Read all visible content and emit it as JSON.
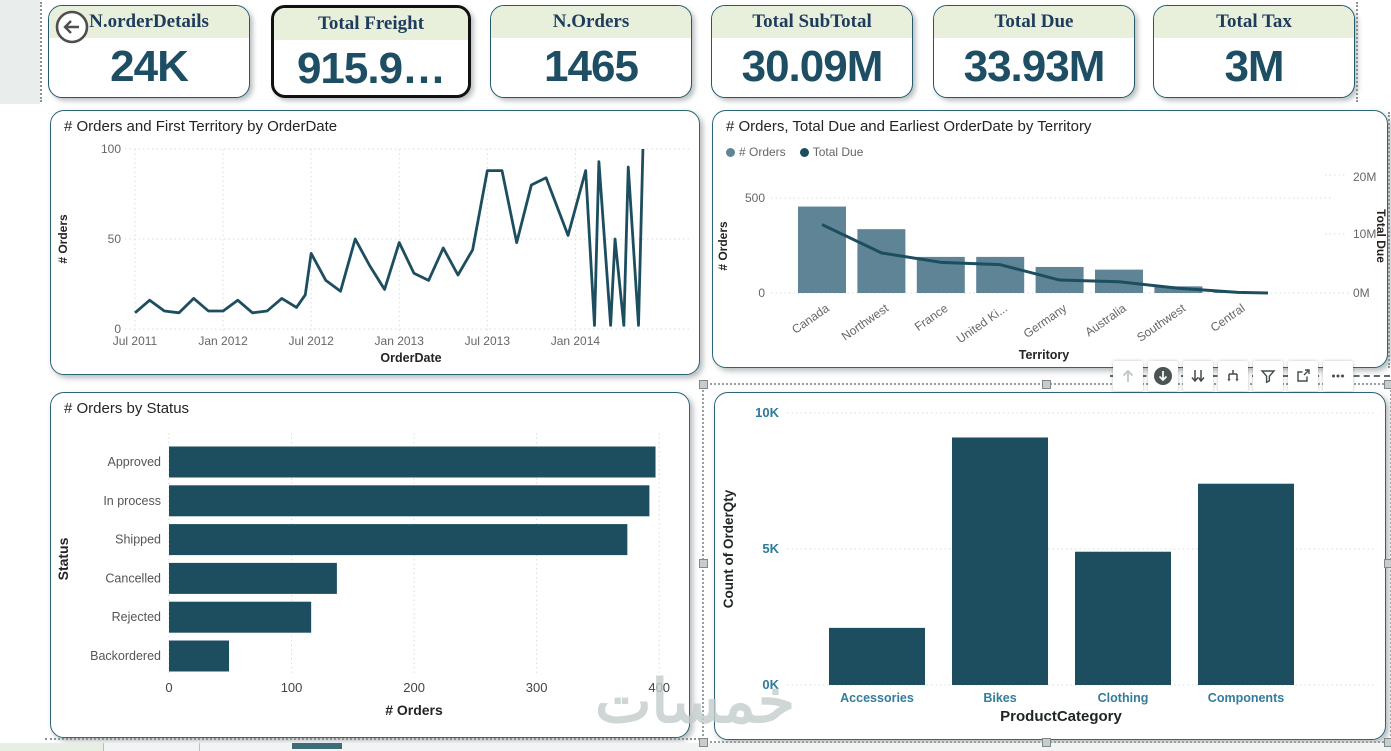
{
  "watermark": "خمسات",
  "colors": {
    "dark_teal": "#1c4e5f",
    "slate_blue": "#5f8496",
    "kpi_header_bg": "#e8f0dc",
    "kpi_title_text": "#1e3c5c",
    "kpi_value_text": "#1d4e63",
    "panel_border": "#2c6576",
    "axis_text": "#666666",
    "teal_tick_text": "#2d7b9a"
  },
  "kpi_cards": [
    {
      "title": "N.orderDetails",
      "value": "24K",
      "has_back_icon": true,
      "selected": false
    },
    {
      "title": "Total Freight",
      "value": "915.9…",
      "has_back_icon": false,
      "selected": true
    },
    {
      "title": "N.Orders",
      "value": "1465",
      "has_back_icon": false,
      "selected": false
    },
    {
      "title": "Total SubTotal",
      "value": "30.09M",
      "has_back_icon": false,
      "selected": false
    },
    {
      "title": "Total Due",
      "value": "33.93M",
      "has_back_icon": false,
      "selected": false
    },
    {
      "title": "Total Tax",
      "value": "3M",
      "has_back_icon": false,
      "selected": false
    }
  ],
  "toolbar": {
    "icons": [
      "drill-up",
      "drill-down",
      "go-to-next-level",
      "expand-all-down",
      "filter",
      "focus-mode",
      "more-options"
    ]
  },
  "chart_data": [
    {
      "id": "orders-by-orderdate",
      "type": "line",
      "title": "# Orders and First Territory by OrderDate",
      "xlabel": "OrderDate",
      "ylabel": "# Orders",
      "ylim": [
        0,
        100
      ],
      "y_ticks": [
        0,
        50,
        100
      ],
      "x_ticks": [
        "Jul 2011",
        "Jan 2012",
        "Jul 2012",
        "Jan 2013",
        "Jul 2013",
        "Jan 2014"
      ],
      "x_tick_months": [
        0,
        6,
        12,
        18,
        24,
        30
      ],
      "grid": "both-dotted",
      "points": [
        [
          0,
          9
        ],
        [
          1,
          16
        ],
        [
          2,
          10
        ],
        [
          3,
          9
        ],
        [
          4,
          17
        ],
        [
          5,
          10
        ],
        [
          6,
          10
        ],
        [
          7,
          16
        ],
        [
          8,
          9
        ],
        [
          9,
          10
        ],
        [
          10,
          17
        ],
        [
          11,
          12
        ],
        [
          11.6,
          19
        ],
        [
          12,
          42
        ],
        [
          13,
          27
        ],
        [
          14,
          21
        ],
        [
          15,
          50
        ],
        [
          16,
          35
        ],
        [
          17,
          22
        ],
        [
          18,
          48
        ],
        [
          19,
          31
        ],
        [
          20,
          27
        ],
        [
          21,
          45
        ],
        [
          22,
          30
        ],
        [
          23,
          44
        ],
        [
          24,
          88
        ],
        [
          25,
          88
        ],
        [
          26,
          48
        ],
        [
          27,
          80
        ],
        [
          28,
          84
        ],
        [
          29.5,
          52
        ],
        [
          30.7,
          88
        ],
        [
          31.3,
          2
        ],
        [
          31.6,
          93
        ],
        [
          32.4,
          2
        ],
        [
          32.7,
          50
        ],
        [
          33.3,
          2
        ],
        [
          33.6,
          90
        ],
        [
          34.3,
          2
        ],
        [
          34.6,
          100
        ]
      ]
    },
    {
      "id": "orders-due-by-territory",
      "type": "combo-bar-line",
      "title": "# Orders, Total Due and Earliest OrderDate by Territory",
      "xlabel": "Territory",
      "legend": [
        {
          "label": "# Orders",
          "color_key": "slate_blue"
        },
        {
          "label": "Total Due",
          "color_key": "dark_teal"
        }
      ],
      "categories": [
        "Canada",
        "Northwest",
        "France",
        "United Ki...",
        "Germany",
        "Australia",
        "Southwest",
        "Central"
      ],
      "series": [
        {
          "name": "# Orders",
          "type": "bar",
          "axis": "left",
          "values": [
            455,
            336,
            190,
            190,
            137,
            123,
            35,
            4
          ]
        },
        {
          "name": "Total Due",
          "type": "line",
          "axis": "right",
          "values_millions": [
            11.6,
            6.8,
            5.2,
            4.8,
            2.2,
            1.9,
            0.8,
            0.1
          ]
        }
      ],
      "left_axis": {
        "label": "# Orders",
        "ticks": [
          0,
          500
        ],
        "max": 500
      },
      "right_axis": {
        "label": "Total Due",
        "ticks": [
          "0M",
          "10M",
          "20M"
        ],
        "tick_values_m": [
          0,
          10,
          20
        ],
        "max_m": 20
      }
    },
    {
      "id": "orders-by-status",
      "type": "bar-horizontal",
      "title": "# Orders by Status",
      "xlabel": "# Orders",
      "ylabel": "Status",
      "categories": [
        "Approved",
        "In process",
        "Shipped",
        "Cancelled",
        "Rejected",
        "Backordered"
      ],
      "values": [
        397,
        392,
        374,
        137,
        116,
        49
      ],
      "x_ticks": [
        0,
        100,
        200,
        300,
        400
      ],
      "xlim": [
        0,
        420
      ],
      "grid": "vertical-dotted"
    },
    {
      "id": "orderqty-by-productcategory",
      "type": "bar",
      "title": "",
      "xlabel": "ProductCategory",
      "ylabel": "Count of OrderQty",
      "categories": [
        "Accessories",
        "Bikes",
        "Clothing",
        "Components"
      ],
      "values_k": [
        2.1,
        9.1,
        4.9,
        7.4
      ],
      "y_ticks": [
        "0K",
        "5K",
        "10K"
      ],
      "y_tick_values_k": [
        0,
        5,
        10
      ],
      "ylim_k": [
        0,
        10
      ],
      "grid": "horizontal-dotted"
    }
  ]
}
